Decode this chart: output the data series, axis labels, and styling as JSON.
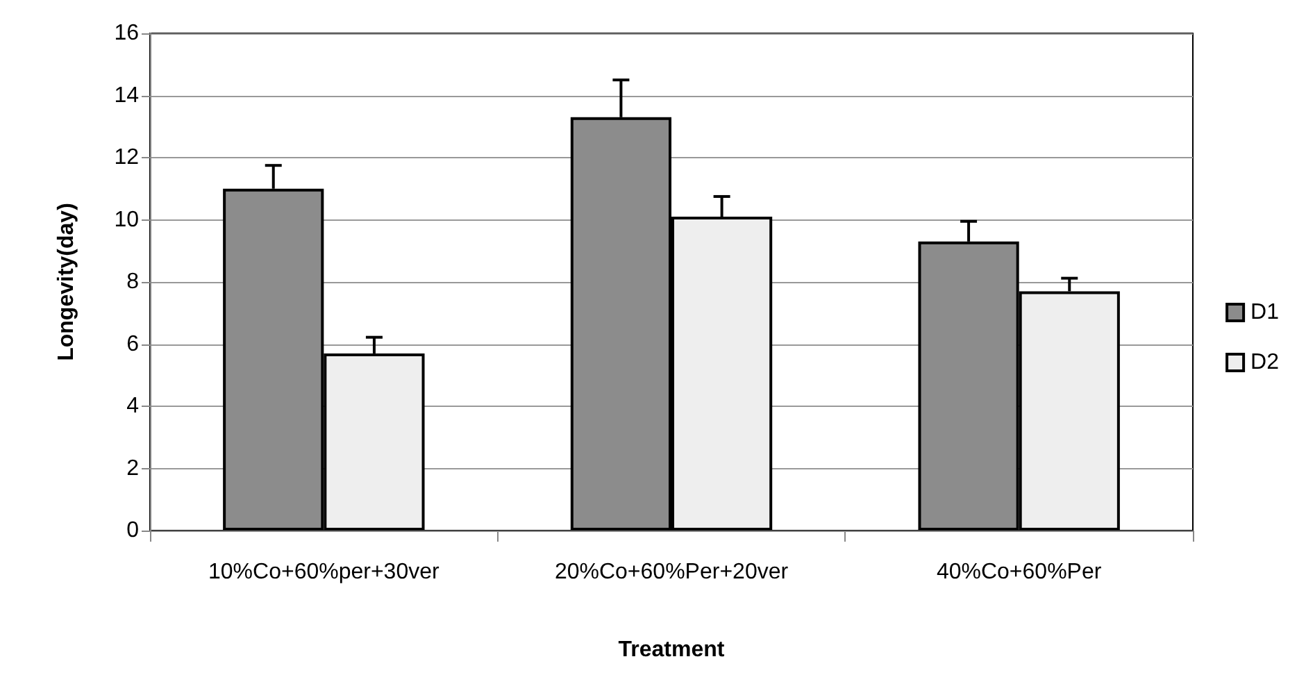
{
  "chart_data": {
    "type": "bar",
    "xlabel": "Treatment",
    "ylabel": "Longevity(day)",
    "categories": [
      "10%Co+60%per+30ver",
      "20%Co+60%Per+20ver",
      "40%Co+60%Per"
    ],
    "series": [
      {
        "name": "D1",
        "color": "#8c8c8c",
        "values": [
          11.0,
          13.3,
          9.3
        ],
        "errors": [
          0.75,
          1.2,
          0.65
        ]
      },
      {
        "name": "D2",
        "color": "#eeeeee",
        "values": [
          5.7,
          10.1,
          7.7
        ],
        "errors": [
          0.52,
          0.65,
          0.42
        ]
      }
    ],
    "ylim": [
      0,
      16
    ],
    "yticks": [
      0,
      2,
      4,
      6,
      8,
      10,
      12,
      14,
      16
    ],
    "grid": "y",
    "legend": "right"
  }
}
